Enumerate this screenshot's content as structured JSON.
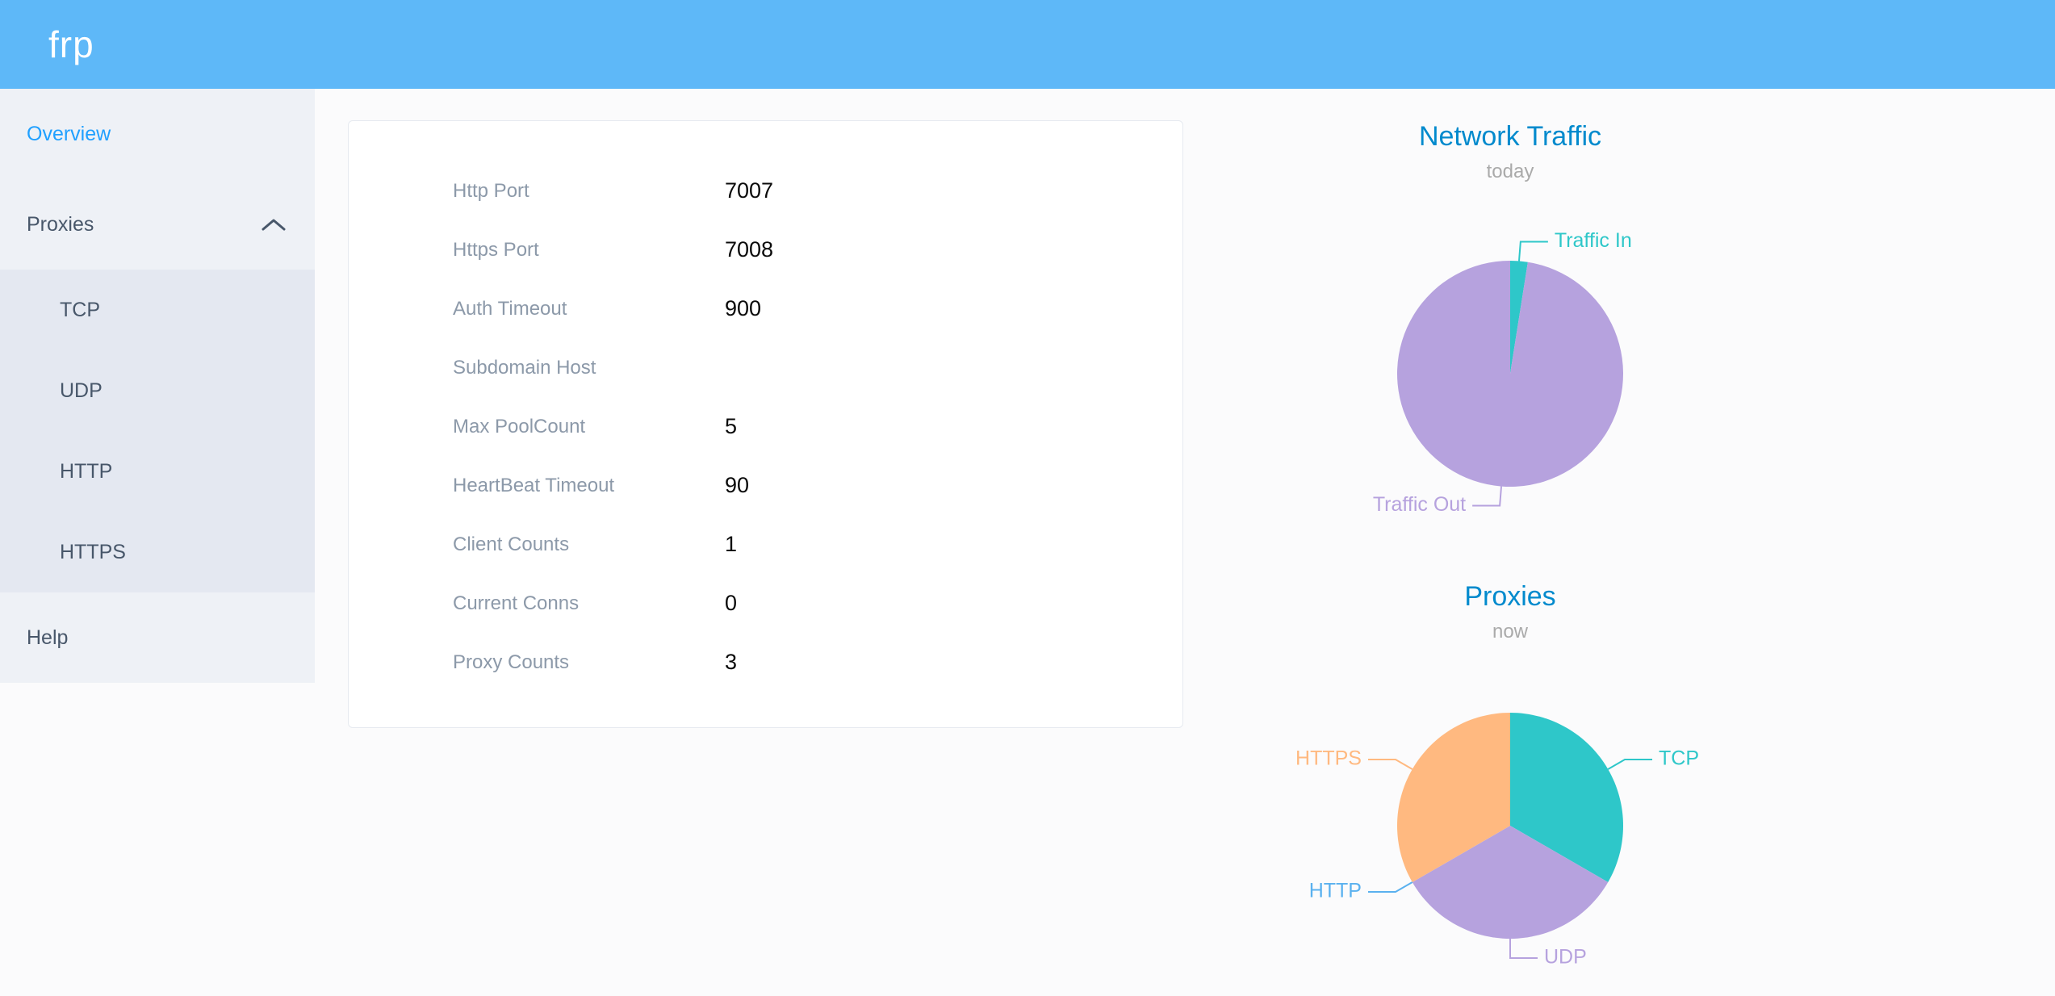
{
  "header": {
    "logo": "frp"
  },
  "sidebar": {
    "overview": "Overview",
    "proxies": "Proxies",
    "proxy_types": [
      "TCP",
      "UDP",
      "HTTP",
      "HTTPS"
    ],
    "help": "Help"
  },
  "overview": {
    "rows": [
      {
        "label": "Http Port",
        "value": "7007"
      },
      {
        "label": "Https Port",
        "value": "7008"
      },
      {
        "label": "Auth Timeout",
        "value": "900"
      },
      {
        "label": "Subdomain Host",
        "value": ""
      },
      {
        "label": "Max PoolCount",
        "value": "5"
      },
      {
        "label": "HeartBeat Timeout",
        "value": "90"
      },
      {
        "label": "Client Counts",
        "value": "1"
      },
      {
        "label": "Current Conns",
        "value": "0"
      },
      {
        "label": "Proxy Counts",
        "value": "3"
      }
    ]
  },
  "chart_data": [
    {
      "type": "pie",
      "title": "Network Traffic",
      "subtitle": "today",
      "legend_position": "none",
      "series": [
        {
          "name": "Traffic In",
          "value": 2.5,
          "color": "#2ec7c9"
        },
        {
          "name": "Traffic Out",
          "value": 97.5,
          "color": "#b6a2de"
        }
      ]
    },
    {
      "type": "pie",
      "title": "Proxies",
      "subtitle": "now",
      "legend_position": "none",
      "series": [
        {
          "name": "TCP",
          "value": 1,
          "color": "#2ec7c9"
        },
        {
          "name": "UDP",
          "value": 1,
          "color": "#b6a2de"
        },
        {
          "name": "HTTP",
          "value": 0,
          "color": "#5ab1ef"
        },
        {
          "name": "HTTPS",
          "value": 1,
          "color": "#ffb980"
        }
      ]
    }
  ],
  "colors": {
    "header_bg": "#5eb8f8",
    "page_bg": "#fbfbfc",
    "sidebar_bg": "#eef1f6",
    "submenu_bg": "#e4e8f1",
    "menu_text": "#48576a",
    "active_text": "#20a0ff",
    "card_border": "#e6eaf0",
    "label_color": "#8c99a9",
    "value_color": "#0a0a0a",
    "chart_title": "#008acd",
    "chart_subtitle": "#aaaaaa"
  }
}
